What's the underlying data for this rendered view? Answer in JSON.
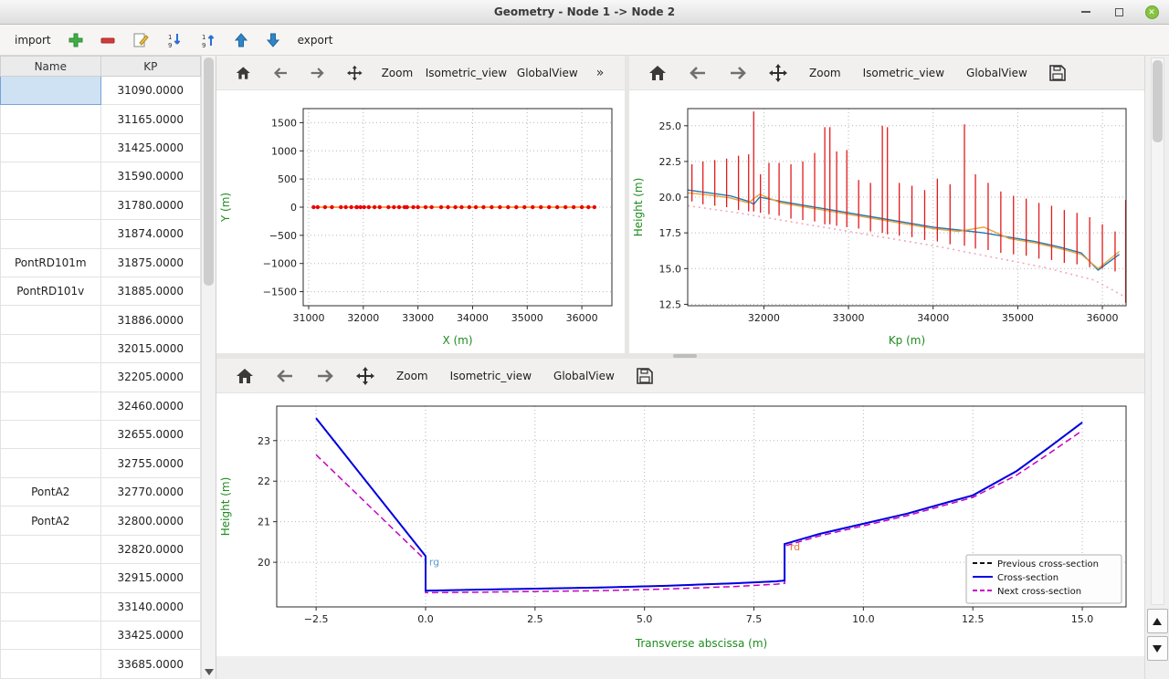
{
  "window": {
    "title": "Geometry - Node 1 -> Node 2"
  },
  "main_toolbar": {
    "import_label": "import",
    "export_label": "export"
  },
  "plot_toolbar": {
    "zoom_label": "Zoom",
    "isometric_label": "Isometric_view",
    "globalview_label": "GlobalView",
    "more_label": "»"
  },
  "table": {
    "columns": [
      "Name",
      "KP"
    ],
    "rows": [
      [
        "",
        "31090.0000"
      ],
      [
        "",
        "31165.0000"
      ],
      [
        "",
        "31425.0000"
      ],
      [
        "",
        "31590.0000"
      ],
      [
        "",
        "31780.0000"
      ],
      [
        "",
        "31874.0000"
      ],
      [
        "PontRD101m",
        "31875.0000"
      ],
      [
        "PontRD101v",
        "31885.0000"
      ],
      [
        "",
        "31886.0000"
      ],
      [
        "",
        "32015.0000"
      ],
      [
        "",
        "32205.0000"
      ],
      [
        "",
        "32460.0000"
      ],
      [
        "",
        "32655.0000"
      ],
      [
        "",
        "32755.0000"
      ],
      [
        "PontA2",
        "32770.0000"
      ],
      [
        "PontA2",
        "32800.0000"
      ],
      [
        "",
        "32820.0000"
      ],
      [
        "",
        "32915.0000"
      ],
      [
        "",
        "33140.0000"
      ],
      [
        "",
        "33425.0000"
      ],
      [
        "",
        "33685.0000"
      ]
    ]
  },
  "chart_data": [
    {
      "name": "plan-view",
      "type": "scatter",
      "title": "",
      "xlabel": "X (m)",
      "ylabel": "Y (m)",
      "label_color": "#1d8c1d",
      "xlim": [
        30900,
        36550
      ],
      "ylim": [
        -1750,
        1750
      ],
      "xticks": [
        31000,
        32000,
        33000,
        34000,
        35000,
        36000
      ],
      "xtick_labels": [
        "31000",
        "32000",
        "33000",
        "34000",
        "35000",
        "36000"
      ],
      "yticks": [
        -1500,
        -1000,
        -500,
        0,
        500,
        1000,
        1500
      ],
      "ytick_labels": [
        "−1500",
        "−1000",
        "−500",
        "0",
        "500",
        "1000",
        "1500"
      ],
      "series": [
        {
          "name": "river-axis",
          "color": "#ff7f0e",
          "width": 1.4,
          "marker": "o",
          "marker_color": "#e8000b",
          "x": [
            31090,
            31165,
            31300,
            31425,
            31590,
            31680,
            31780,
            31874,
            31885,
            31950,
            32015,
            32100,
            32205,
            32300,
            32460,
            32560,
            32655,
            32755,
            32800,
            32915,
            33000,
            33140,
            33250,
            33425,
            33550,
            33685,
            33800,
            33940,
            34060,
            34200,
            34350,
            34500,
            34650,
            34800,
            34950,
            35100,
            35250,
            35400,
            35550,
            35700,
            35850,
            36000,
            36120,
            36230
          ],
          "y": [
            0,
            0,
            0,
            0,
            0,
            0,
            0,
            0,
            0,
            0,
            0,
            0,
            0,
            0,
            0,
            0,
            0,
            0,
            0,
            0,
            0,
            0,
            0,
            0,
            0,
            0,
            0,
            0,
            0,
            0,
            0,
            0,
            0,
            0,
            0,
            0,
            0,
            0,
            0,
            0,
            0,
            0,
            0,
            0
          ]
        }
      ]
    },
    {
      "name": "longitudinal-profile",
      "type": "line",
      "title": "",
      "xlabel": "Kp (m)",
      "ylabel": "Height (m)",
      "label_color": "#1d8c1d",
      "xlim": [
        31100,
        36280
      ],
      "ylim": [
        12.4,
        26.2
      ],
      "xticks": [
        32000,
        33000,
        34000,
        35000,
        36000
      ],
      "xtick_labels": [
        "32000",
        "33000",
        "34000",
        "35000",
        "36000"
      ],
      "yticks": [
        12.5,
        15.0,
        17.5,
        20.0,
        22.5,
        25.0
      ],
      "ytick_labels": [
        "12.5",
        "15.0",
        "17.5",
        "20.0",
        "22.5",
        "25.0"
      ],
      "vline_color": "#e31a1c",
      "vlines": [
        {
          "x": 31150,
          "y0": 19.7,
          "y1": 22.3
        },
        {
          "x": 31280,
          "y0": 19.5,
          "y1": 22.5
        },
        {
          "x": 31420,
          "y0": 19.4,
          "y1": 22.6
        },
        {
          "x": 31560,
          "y0": 19.3,
          "y1": 22.7
        },
        {
          "x": 31700,
          "y0": 19.1,
          "y1": 22.9
        },
        {
          "x": 31820,
          "y0": 19.0,
          "y1": 23.0
        },
        {
          "x": 31880,
          "y0": 19.0,
          "y1": 26.0
        },
        {
          "x": 31960,
          "y0": 18.9,
          "y1": 21.6
        },
        {
          "x": 32060,
          "y0": 18.8,
          "y1": 22.4
        },
        {
          "x": 32180,
          "y0": 18.7,
          "y1": 22.4
        },
        {
          "x": 32320,
          "y0": 18.5,
          "y1": 22.3
        },
        {
          "x": 32460,
          "y0": 18.4,
          "y1": 22.5
        },
        {
          "x": 32600,
          "y0": 18.3,
          "y1": 23.1
        },
        {
          "x": 32720,
          "y0": 18.1,
          "y1": 24.9
        },
        {
          "x": 32780,
          "y0": 18.1,
          "y1": 24.9
        },
        {
          "x": 32860,
          "y0": 18.0,
          "y1": 23.2
        },
        {
          "x": 32980,
          "y0": 17.9,
          "y1": 23.3
        },
        {
          "x": 33120,
          "y0": 17.8,
          "y1": 21.2
        },
        {
          "x": 33260,
          "y0": 17.6,
          "y1": 21.0
        },
        {
          "x": 33400,
          "y0": 17.5,
          "y1": 25.0
        },
        {
          "x": 33460,
          "y0": 17.4,
          "y1": 24.9
        },
        {
          "x": 33600,
          "y0": 17.3,
          "y1": 21.0
        },
        {
          "x": 33750,
          "y0": 17.2,
          "y1": 20.8
        },
        {
          "x": 33900,
          "y0": 17.0,
          "y1": 20.5
        },
        {
          "x": 34050,
          "y0": 16.9,
          "y1": 21.3
        },
        {
          "x": 34200,
          "y0": 16.7,
          "y1": 20.9
        },
        {
          "x": 34370,
          "y0": 16.6,
          "y1": 25.1
        },
        {
          "x": 34500,
          "y0": 16.4,
          "y1": 21.6
        },
        {
          "x": 34650,
          "y0": 16.3,
          "y1": 21.0
        },
        {
          "x": 34800,
          "y0": 16.1,
          "y1": 20.4
        },
        {
          "x": 34950,
          "y0": 16.0,
          "y1": 20.1
        },
        {
          "x": 35100,
          "y0": 15.9,
          "y1": 19.9
        },
        {
          "x": 35250,
          "y0": 15.7,
          "y1": 19.6
        },
        {
          "x": 35400,
          "y0": 15.6,
          "y1": 19.4
        },
        {
          "x": 35550,
          "y0": 15.4,
          "y1": 19.1
        },
        {
          "x": 35700,
          "y0": 15.3,
          "y1": 18.9
        },
        {
          "x": 35850,
          "y0": 15.1,
          "y1": 18.6
        },
        {
          "x": 36000,
          "y0": 15.0,
          "y1": 18.1
        },
        {
          "x": 36150,
          "y0": 14.8,
          "y1": 17.6
        },
        {
          "x": 36275,
          "y0": 12.6,
          "y1": 19.8
        }
      ],
      "series": [
        {
          "name": "left-bank",
          "color": "#1f77b4",
          "width": 1.4,
          "x": [
            31100,
            31350,
            31600,
            31820,
            31880,
            31950,
            32200,
            32500,
            32800,
            33100,
            33400,
            33700,
            34000,
            34300,
            34600,
            34900,
            35200,
            35500,
            35750,
            35950,
            36200
          ],
          "y": [
            20.5,
            20.3,
            20.1,
            19.7,
            19.5,
            20.0,
            19.7,
            19.4,
            19.1,
            18.8,
            18.5,
            18.2,
            17.9,
            17.7,
            17.5,
            17.2,
            16.9,
            16.5,
            16.1,
            14.9,
            16.0
          ]
        },
        {
          "name": "right-bank",
          "color": "#e8a33d",
          "width": 1.4,
          "x": [
            31100,
            31350,
            31600,
            31820,
            31880,
            31950,
            32200,
            32500,
            32800,
            33100,
            33400,
            33700,
            34000,
            34300,
            34600,
            34900,
            35200,
            35500,
            35750,
            35950,
            36200
          ],
          "y": [
            20.3,
            20.15,
            19.95,
            19.6,
            19.9,
            20.2,
            19.6,
            19.3,
            19.0,
            18.7,
            18.4,
            18.1,
            17.8,
            17.6,
            17.9,
            17.1,
            16.8,
            16.4,
            16.0,
            15.0,
            16.2
          ]
        },
        {
          "name": "bottom-level",
          "color": "#f2a8bc",
          "width": 1.6,
          "dash": "dotted",
          "x": [
            31100,
            31700,
            32300,
            32900,
            33500,
            34100,
            34700,
            35300,
            35900,
            36275
          ],
          "y": [
            19.4,
            18.9,
            18.3,
            17.7,
            17.1,
            16.5,
            15.8,
            15.1,
            14.2,
            13.0
          ]
        }
      ]
    },
    {
      "name": "cross-section",
      "type": "line",
      "title": "",
      "xlabel": "Transverse abscissa (m)",
      "ylabel": "Height (m)",
      "label_color": "#1d8c1d",
      "xlim": [
        -3.4,
        16.0
      ],
      "ylim": [
        18.9,
        23.85
      ],
      "xticks": [
        -2.5,
        0.0,
        2.5,
        5.0,
        7.5,
        10.0,
        12.5,
        15.0
      ],
      "xtick_labels": [
        "−2.5",
        "0.0",
        "2.5",
        "5.0",
        "7.5",
        "10.0",
        "12.5",
        "15.0"
      ],
      "yticks": [
        20,
        21,
        22,
        23
      ],
      "ytick_labels": [
        "20",
        "21",
        "22",
        "23"
      ],
      "legend": [
        {
          "label": "Previous cross-section",
          "color": "#111111",
          "dash": "dashed"
        },
        {
          "label": "Cross-section",
          "color": "#0000e0",
          "dash": "solid"
        },
        {
          "label": "Next cross-section",
          "color": "#c400c4",
          "dash": "dashed"
        }
      ],
      "annotations": [
        {
          "text": "rg",
          "x": 0.08,
          "y": 19.92,
          "color": "#5b9bd5"
        },
        {
          "text": "rd",
          "x": 8.32,
          "y": 20.3,
          "color": "#e07b39"
        }
      ],
      "series": [
        {
          "name": "previous-cross-section",
          "color": "#111111",
          "width": 1.6,
          "dash": "dashed",
          "x": [
            -2.5,
            0.0,
            0.0,
            1.0,
            2.5,
            4.0,
            5.5,
            7.0,
            8.0,
            8.2,
            8.2,
            9.0,
            10.0,
            11.0,
            12.0,
            12.5,
            13.5,
            14.2,
            15.0
          ],
          "y": [
            23.55,
            20.15,
            19.3,
            19.32,
            19.35,
            19.38,
            19.42,
            19.48,
            19.53,
            19.55,
            20.45,
            20.7,
            20.95,
            21.2,
            21.5,
            21.65,
            22.25,
            22.8,
            23.45
          ]
        },
        {
          "name": "next-cross-section",
          "color": "#c400c4",
          "width": 1.5,
          "dash": "dashed",
          "x": [
            -2.5,
            0.0,
            0.0,
            1.0,
            2.5,
            4.0,
            5.5,
            7.0,
            8.0,
            8.2,
            8.2,
            9.0,
            10.0,
            11.0,
            12.0,
            12.5,
            13.5,
            14.2,
            15.0
          ],
          "y": [
            22.65,
            20.05,
            19.25,
            19.26,
            19.28,
            19.3,
            19.34,
            19.4,
            19.46,
            19.48,
            20.4,
            20.65,
            20.9,
            21.15,
            21.45,
            21.6,
            22.15,
            22.65,
            23.25
          ]
        },
        {
          "name": "current-cross-section",
          "color": "#0000e0",
          "width": 2.0,
          "x": [
            -2.5,
            0.0,
            0.0,
            1.0,
            2.5,
            4.0,
            5.5,
            7.0,
            8.0,
            8.2,
            8.2,
            9.0,
            10.0,
            11.0,
            12.0,
            12.5,
            13.5,
            14.2,
            15.0
          ],
          "y": [
            23.55,
            20.15,
            19.3,
            19.32,
            19.35,
            19.38,
            19.42,
            19.48,
            19.53,
            19.55,
            20.45,
            20.7,
            20.95,
            21.2,
            21.5,
            21.65,
            22.25,
            22.8,
            23.45
          ]
        }
      ]
    }
  ]
}
